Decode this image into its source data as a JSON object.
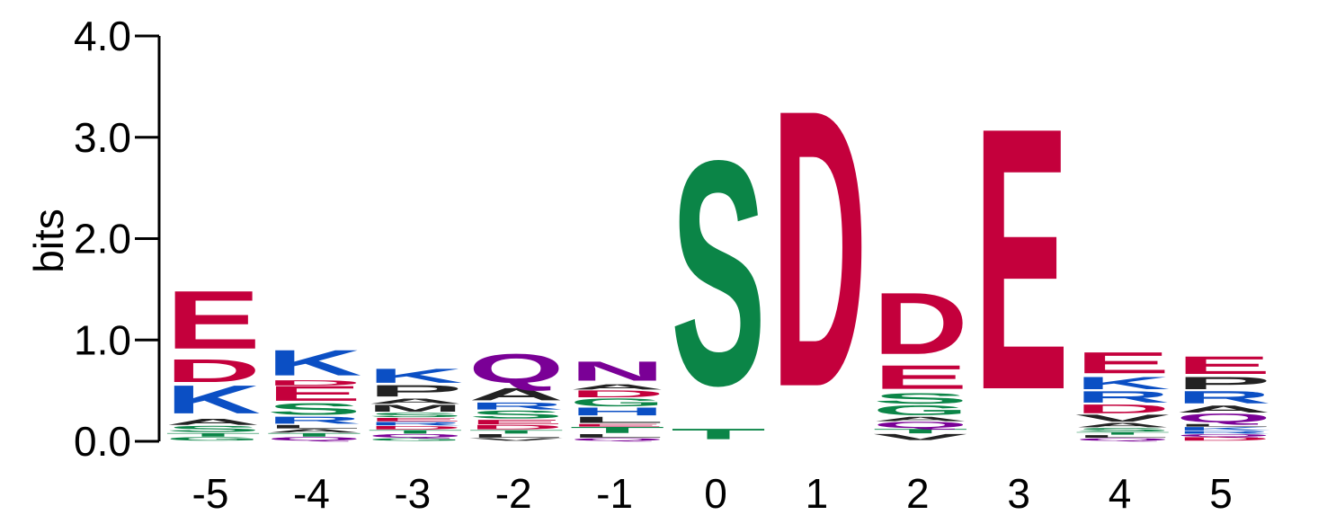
{
  "chart_data": {
    "type": "sequence-logo",
    "ylabel": "bits",
    "ylim": [
      0,
      4
    ],
    "y_ticks": [
      "0.0",
      "1.0",
      "2.0",
      "3.0",
      "4.0"
    ],
    "y_tick_values": [
      0,
      1,
      2,
      3,
      4
    ],
    "colors": {
      "acidic": "#c4003c",
      "basic": "#0b4fc4",
      "polar": "#0b8547",
      "amide": "#7a0096",
      "hydrophobic": "#222222",
      "other": "#e0569a"
    },
    "positions": [
      {
        "label": "-5",
        "stack": [
          {
            "letter": "G",
            "bits": 0.04,
            "color": "#0b8547"
          },
          {
            "letter": "T",
            "bits": 0.04,
            "color": "#0b8547"
          },
          {
            "letter": "S",
            "bits": 0.07,
            "color": "#0b8547"
          },
          {
            "letter": "A",
            "bits": 0.07,
            "color": "#222222"
          },
          {
            "letter": "K",
            "bits": 0.32,
            "color": "#0b4fc4"
          },
          {
            "letter": "D",
            "bits": 0.26,
            "color": "#c4003c"
          },
          {
            "letter": "E",
            "bits": 0.66,
            "color": "#c4003c"
          }
        ]
      },
      {
        "label": "-4",
        "stack": [
          {
            "letter": "Q",
            "bits": 0.04,
            "color": "#7a0096"
          },
          {
            "letter": "T",
            "bits": 0.04,
            "color": "#0b8547"
          },
          {
            "letter": "A",
            "bits": 0.04,
            "color": "#222222"
          },
          {
            "letter": "L",
            "bits": 0.04,
            "color": "#222222"
          },
          {
            "letter": "R",
            "bits": 0.08,
            "color": "#0b4fc4"
          },
          {
            "letter": "S",
            "bits": 0.13,
            "color": "#0b8547"
          },
          {
            "letter": "E",
            "bits": 0.17,
            "color": "#c4003c"
          },
          {
            "letter": "D",
            "bits": 0.06,
            "color": "#c4003c"
          },
          {
            "letter": "K",
            "bits": 0.29,
            "color": "#0b4fc4"
          }
        ]
      },
      {
        "label": "-3",
        "stack": [
          {
            "letter": "G",
            "bits": 0.03,
            "color": "#0b8547"
          },
          {
            "letter": "Q",
            "bits": 0.04,
            "color": "#7a0096"
          },
          {
            "letter": "T",
            "bits": 0.04,
            "color": "#0b8547"
          },
          {
            "letter": "D",
            "bits": 0.04,
            "color": "#c4003c"
          },
          {
            "letter": "R",
            "bits": 0.04,
            "color": "#0b4fc4"
          },
          {
            "letter": "E",
            "bits": 0.04,
            "color": "#c4003c"
          },
          {
            "letter": "S",
            "bits": 0.05,
            "color": "#0b8547"
          },
          {
            "letter": "M",
            "bits": 0.08,
            "color": "#222222"
          },
          {
            "letter": "A",
            "bits": 0.06,
            "color": "#222222"
          },
          {
            "letter": "P",
            "bits": 0.13,
            "color": "#222222"
          },
          {
            "letter": "K",
            "bits": 0.16,
            "color": "#0b4fc4"
          }
        ]
      },
      {
        "label": "-2",
        "stack": [
          {
            "letter": "V",
            "bits": 0.03,
            "color": "#222222"
          },
          {
            "letter": "L",
            "bits": 0.04,
            "color": "#222222"
          },
          {
            "letter": "T",
            "bits": 0.04,
            "color": "#0b8547"
          },
          {
            "letter": "D",
            "bits": 0.05,
            "color": "#c4003c"
          },
          {
            "letter": "E",
            "bits": 0.05,
            "color": "#c4003c"
          },
          {
            "letter": "S",
            "bits": 0.09,
            "color": "#0b8547"
          },
          {
            "letter": "R",
            "bits": 0.08,
            "color": "#0b4fc4"
          },
          {
            "letter": "A",
            "bits": 0.14,
            "color": "#222222"
          },
          {
            "letter": "Q",
            "bits": 0.33,
            "color": "#7a0096"
          }
        ]
      },
      {
        "label": "-1",
        "stack": [
          {
            "letter": "Q",
            "bits": 0.03,
            "color": "#7a0096"
          },
          {
            "letter": "L",
            "bits": 0.04,
            "color": "#222222"
          },
          {
            "letter": "T",
            "bits": 0.07,
            "color": "#0b8547"
          },
          {
            "letter": "E",
            "bits": 0.03,
            "color": "#c4003c"
          },
          {
            "letter": "L",
            "bits": 0.07,
            "color": "#222222"
          },
          {
            "letter": "H",
            "bits": 0.09,
            "color": "#0b4fc4"
          },
          {
            "letter": "G",
            "bits": 0.09,
            "color": "#0b8547"
          },
          {
            "letter": "D",
            "bits": 0.08,
            "color": "#c4003c"
          },
          {
            "letter": "A",
            "bits": 0.06,
            "color": "#222222"
          },
          {
            "letter": "N",
            "bits": 0.22,
            "color": "#7a0096"
          }
        ]
      },
      {
        "label": "0",
        "stack": [
          {
            "letter": "T",
            "bits": 0.12,
            "color": "#0b8547"
          },
          {
            "letter": "S",
            "bits": 2.55,
            "color": "#0b8547"
          }
        ]
      },
      {
        "label": "1",
        "stack": [
          {
            "letter": "D",
            "bits": 3.15,
            "color": "#c4003c"
          }
        ]
      },
      {
        "label": "2",
        "stack": [
          {
            "letter": "V",
            "bits": 0.07,
            "color": "#222222"
          },
          {
            "letter": "T",
            "bits": 0.05,
            "color": "#0b8547"
          },
          {
            "letter": "Q",
            "bits": 0.07,
            "color": "#7a0096"
          },
          {
            "letter": "A",
            "bits": 0.05,
            "color": "#222222"
          },
          {
            "letter": "G",
            "bits": 0.11,
            "color": "#0b8547"
          },
          {
            "letter": "S",
            "bits": 0.12,
            "color": "#0b8547"
          },
          {
            "letter": "E",
            "bits": 0.27,
            "color": "#c4003c"
          },
          {
            "letter": "D",
            "bits": 0.7,
            "color": "#c4003c"
          }
        ]
      },
      {
        "label": "3",
        "stack": [
          {
            "letter": "E",
            "bits": 2.98,
            "color": "#c4003c"
          }
        ]
      },
      {
        "label": "4",
        "stack": [
          {
            "letter": "Q",
            "bits": 0.03,
            "color": "#7a0096"
          },
          {
            "letter": "L",
            "bits": 0.03,
            "color": "#222222"
          },
          {
            "letter": "T",
            "bits": 0.03,
            "color": "#0b8547"
          },
          {
            "letter": "S",
            "bits": 0.04,
            "color": "#0b8547"
          },
          {
            "letter": "A",
            "bits": 0.05,
            "color": "#222222"
          },
          {
            "letter": "V",
            "bits": 0.08,
            "color": "#222222"
          },
          {
            "letter": "D",
            "bits": 0.1,
            "color": "#c4003c"
          },
          {
            "letter": "R",
            "bits": 0.13,
            "color": "#0b4fc4"
          },
          {
            "letter": "K",
            "bits": 0.14,
            "color": "#0b4fc4"
          },
          {
            "letter": "E",
            "bits": 0.24,
            "color": "#c4003c"
          }
        ]
      },
      {
        "label": "5",
        "stack": [
          {
            "letter": "D",
            "bits": 0.04,
            "color": "#c4003c"
          },
          {
            "letter": "Q",
            "bits": 0.03,
            "color": "#7a0096"
          },
          {
            "letter": "R",
            "bits": 0.03,
            "color": "#0b4fc4"
          },
          {
            "letter": "K",
            "bits": 0.04,
            "color": "#0b4fc4"
          },
          {
            "letter": "L",
            "bits": 0.03,
            "color": "#222222"
          },
          {
            "letter": "Q",
            "bits": 0.1,
            "color": "#7a0096"
          },
          {
            "letter": "A",
            "bits": 0.08,
            "color": "#222222"
          },
          {
            "letter": "R",
            "bits": 0.14,
            "color": "#0b4fc4"
          },
          {
            "letter": "P",
            "bits": 0.14,
            "color": "#222222"
          },
          {
            "letter": "E",
            "bits": 0.2,
            "color": "#c4003c"
          }
        ]
      }
    ]
  }
}
